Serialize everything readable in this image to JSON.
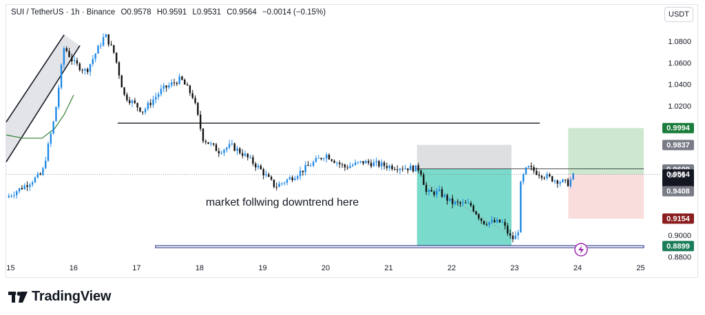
{
  "header": {
    "symbol": "SUI / TetherUS · 1h · Binance",
    "open": "O0.9578",
    "high": "H0.9591",
    "low": "L0.9531",
    "close": "C0.9564",
    "change": "−0.0014 (−0.15%)"
  },
  "currency_button": "USDT",
  "brand": "TradingView",
  "annotation": "market follwing downtrend here",
  "countdown": "26:01",
  "chart_data": {
    "type": "candlestick",
    "x_ticks": [
      "15",
      "16",
      "17",
      "18",
      "19",
      "20",
      "21",
      "22",
      "23",
      "24",
      "25"
    ],
    "y_ticks": [
      "1.0800",
      "1.0600",
      "1.0400",
      "1.0200",
      "0.9000",
      "0.8800"
    ],
    "ylim": [
      0.877,
      1.094
    ],
    "xlim": [
      14.93,
      25.3
    ],
    "price_path": [
      [
        14.93,
        0.935
      ],
      [
        15.2,
        0.945
      ],
      [
        15.5,
        0.957
      ],
      [
        15.7,
        1.01
      ],
      [
        15.85,
        1.075
      ],
      [
        16.0,
        1.06
      ],
      [
        16.2,
        1.052
      ],
      [
        16.5,
        1.086
      ],
      [
        16.65,
        1.068
      ],
      [
        16.8,
        1.03
      ],
      [
        17.1,
        1.015
      ],
      [
        17.4,
        1.035
      ],
      [
        17.7,
        1.045
      ],
      [
        17.9,
        1.028
      ],
      [
        18.05,
        0.99
      ],
      [
        18.3,
        0.978
      ],
      [
        18.5,
        0.983
      ],
      [
        18.7,
        0.975
      ],
      [
        18.95,
        0.962
      ],
      [
        19.2,
        0.945
      ],
      [
        19.5,
        0.955
      ],
      [
        19.8,
        0.967
      ],
      [
        20.0,
        0.975
      ],
      [
        20.3,
        0.963
      ],
      [
        20.6,
        0.968
      ],
      [
        21.0,
        0.964
      ],
      [
        21.5,
        0.9615
      ],
      [
        21.6,
        0.939
      ],
      [
        21.8,
        0.94
      ],
      [
        22.0,
        0.93
      ],
      [
        22.3,
        0.928
      ],
      [
        22.5,
        0.912
      ],
      [
        22.8,
        0.912
      ],
      [
        22.95,
        0.896
      ],
      [
        23.05,
        0.9
      ],
      [
        23.1,
        0.95
      ],
      [
        23.2,
        0.963
      ],
      [
        23.4,
        0.957
      ],
      [
        23.6,
        0.952
      ],
      [
        23.85,
        0.948
      ],
      [
        23.95,
        0.9564
      ]
    ],
    "channel": {
      "upper": [
        [
          14.93,
          1.005
        ],
        [
          15.85,
          1.086
        ]
      ],
      "lower": [
        [
          14.93,
          0.968
        ],
        [
          16.1,
          1.076
        ]
      ]
    },
    "ma_curve": [
      [
        14.93,
        0.993
      ],
      [
        15.2,
        0.99
      ],
      [
        15.5,
        0.99
      ],
      [
        15.7,
        0.999
      ],
      [
        15.85,
        1.012
      ],
      [
        16.0,
        1.03
      ]
    ],
    "resistance_line": {
      "x": [
        16.7,
        23.4
      ],
      "y": 1.004
    },
    "support_band": {
      "x": [
        17.3,
        25.05
      ],
      "y": [
        0.8893,
        0.8903
      ]
    },
    "dotted_price_line": 0.9564,
    "short_position": {
      "x": [
        21.45,
        22.95
      ],
      "entry": 0.9615,
      "stop": 0.9838,
      "target": 0.8895
    },
    "long_position": {
      "x": [
        23.85,
        25.05
      ],
      "entry": 0.9564,
      "target": 0.9994,
      "stop": 0.9154
    },
    "price_labels": [
      {
        "value": 0.9994,
        "text": "0.9994",
        "color": "#1b7d3c"
      },
      {
        "value": 0.9837,
        "text": "0.9837",
        "color": "#787b86"
      },
      {
        "value": 0.9609,
        "text": "0.9609",
        "color": "#787b86"
      },
      {
        "value": 0.9564,
        "text": "0.9564",
        "color": "#131722"
      },
      {
        "value": 0.9408,
        "text": "0.9408",
        "color": "#787b86"
      },
      {
        "value": 0.9154,
        "text": "0.9154",
        "color": "#8a1d1d"
      },
      {
        "value": 0.8899,
        "text": "0.8899",
        "color": "#1b7d5a"
      }
    ],
    "colors": {
      "up": "#1e88e5",
      "down": "#111111",
      "profit_short": "#4ecdb9",
      "loss_short": "#c8c9cd",
      "profit_long": "#a5d6a7",
      "loss_long": "#f5c6c6",
      "alert": "#9c27b0"
    }
  }
}
